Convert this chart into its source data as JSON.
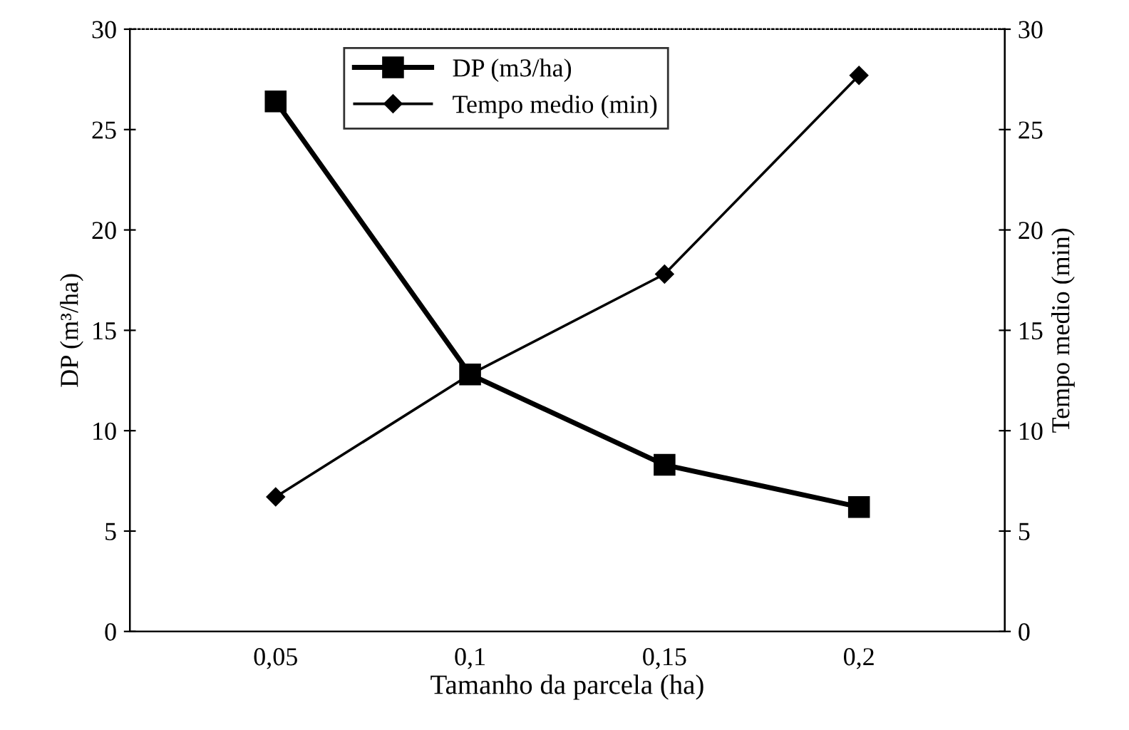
{
  "chart_data": {
    "type": "line",
    "xlabel": "Tamanho da parcela (ha)",
    "ylabel": "DP (m³/ha)",
    "y2label": "Tempo medio (min)",
    "categories": [
      "0,05",
      "0,1",
      "0,15",
      "0,2"
    ],
    "series": [
      {
        "name": "DP (m3/ha)",
        "color": "#000000",
        "values": [
          26.4,
          12.8,
          8.3,
          6.2
        ],
        "marker": "square"
      },
      {
        "name": "Tempo medio (min)",
        "color": "#000000",
        "values": [
          6.7,
          12.8,
          17.8,
          27.7
        ],
        "marker": "diamond",
        "axis": "y2"
      }
    ],
    "ylim": [
      0,
      30
    ],
    "yticks": [
      0,
      5,
      10,
      15,
      20,
      25,
      30
    ],
    "y2lim": [
      0,
      30
    ],
    "y2ticks": [
      0,
      5,
      10,
      15,
      20,
      25,
      30
    ],
    "legend": "top",
    "grid": false
  }
}
